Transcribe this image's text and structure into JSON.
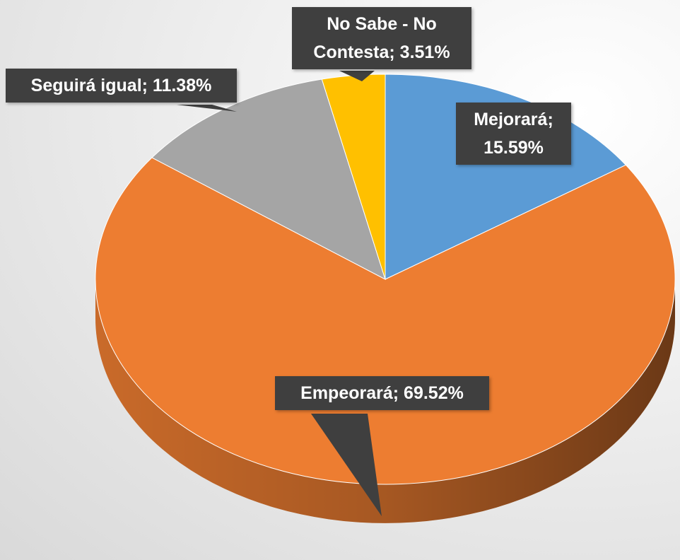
{
  "chart_data": {
    "type": "pie",
    "categories": [
      "Mejorará",
      "Empeorará",
      "Seguirá igual",
      "No Sabe - No Contesta"
    ],
    "values": [
      15.59,
      69.52,
      11.38,
      3.51
    ],
    "value_labels": [
      "15.59%",
      "69.52%",
      "11.38%",
      "3.51%"
    ],
    "label_separator": "; ",
    "colors": [
      "#5b9bd5",
      "#ed7d31",
      "#a5a5a5",
      "#ffc000"
    ]
  }
}
